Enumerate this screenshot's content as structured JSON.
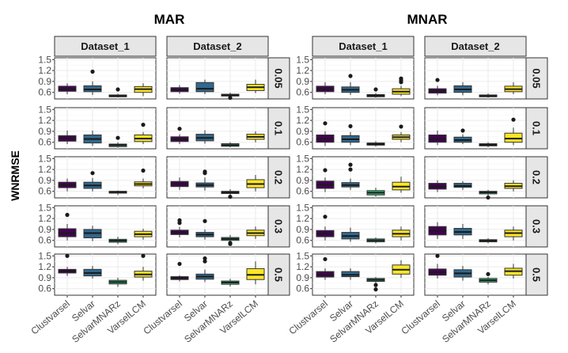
{
  "chart_data": {
    "type": "boxplot",
    "y_label": "WNRMSE",
    "y_ticks": [
      "0.6",
      "0.9",
      "1.2",
      "1.5"
    ],
    "y_tick_values": [
      0.6,
      0.9,
      1.2,
      1.5
    ],
    "ylim": [
      0.42,
      1.55
    ],
    "methods": [
      "Clustvarsel",
      "Selvar",
      "SelvarMNARz",
      "VarselLCM"
    ],
    "method_colors": [
      "#440154",
      "#31688e",
      "#35b779",
      "#fde725"
    ],
    "datasets": [
      "Dataset_1",
      "Dataset_2"
    ],
    "row_labels": [
      "0.05",
      "0.1",
      "0.2",
      "0.3",
      "0.5"
    ],
    "mechanisms": [
      {
        "title": "MAR",
        "panels": [
          [
            [
              {
                "q1": 0.63,
                "med": 0.69,
                "q3": 0.77,
                "lo": 0.55,
                "hi": 0.85,
                "out": []
              },
              {
                "q1": 0.62,
                "med": 0.68,
                "q3": 0.78,
                "lo": 0.53,
                "hi": 0.9,
                "out": [
                  1.17
                ]
              },
              {
                "q1": 0.48,
                "med": 0.5,
                "q3": 0.53,
                "lo": 0.46,
                "hi": 0.56,
                "out": [
                  0.68
                ]
              },
              {
                "q1": 0.6,
                "med": 0.69,
                "q3": 0.76,
                "lo": 0.5,
                "hi": 0.85,
                "out": []
              }
            ],
            [
              {
                "q1": 0.62,
                "med": 0.67,
                "q3": 0.73,
                "lo": 0.56,
                "hi": 0.8,
                "out": []
              },
              {
                "q1": 0.62,
                "med": 0.7,
                "q3": 0.87,
                "lo": 0.55,
                "hi": 0.95,
                "out": []
              },
              {
                "q1": 0.5,
                "med": 0.52,
                "q3": 0.55,
                "lo": 0.47,
                "hi": 0.59,
                "out": [
                  0.45
                ]
              },
              {
                "q1": 0.65,
                "med": 0.74,
                "q3": 0.82,
                "lo": 0.58,
                "hi": 0.95,
                "out": []
              }
            ]
          ],
          [
            [
              {
                "q1": 0.63,
                "med": 0.71,
                "q3": 0.78,
                "lo": 0.55,
                "hi": 0.92,
                "out": []
              },
              {
                "q1": 0.58,
                "med": 0.69,
                "q3": 0.8,
                "lo": 0.5,
                "hi": 0.92,
                "out": []
              },
              {
                "q1": 0.48,
                "med": 0.52,
                "q3": 0.55,
                "lo": 0.45,
                "hi": 0.6,
                "out": [
                  0.72
                ]
              },
              {
                "q1": 0.62,
                "med": 0.7,
                "q3": 0.8,
                "lo": 0.55,
                "hi": 0.88,
                "out": [
                  1.08
                ]
              }
            ],
            [
              {
                "q1": 0.62,
                "med": 0.68,
                "q3": 0.75,
                "lo": 0.55,
                "hi": 0.82,
                "out": [
                  0.97
                ]
              },
              {
                "q1": 0.64,
                "med": 0.72,
                "q3": 0.82,
                "lo": 0.56,
                "hi": 0.93,
                "out": []
              },
              {
                "q1": 0.49,
                "med": 0.52,
                "q3": 0.56,
                "lo": 0.46,
                "hi": 0.6,
                "out": []
              },
              {
                "q1": 0.68,
                "med": 0.75,
                "q3": 0.82,
                "lo": 0.6,
                "hi": 0.9,
                "out": []
              }
            ]
          ],
          [
            [
              {
                "q1": 0.7,
                "med": 0.77,
                "q3": 0.85,
                "lo": 0.6,
                "hi": 0.95,
                "out": []
              },
              {
                "q1": 0.68,
                "med": 0.76,
                "q3": 0.85,
                "lo": 0.6,
                "hi": 0.97,
                "out": [
                  1.1
                ]
              },
              {
                "q1": 0.55,
                "med": 0.58,
                "q3": 0.6,
                "lo": 0.5,
                "hi": 0.62,
                "out": []
              },
              {
                "q1": 0.75,
                "med": 0.8,
                "q3": 0.86,
                "lo": 0.68,
                "hi": 0.95,
                "out": [
                  1.17
                ]
              }
            ],
            [
              {
                "q1": 0.73,
                "med": 0.8,
                "q3": 0.87,
                "lo": 0.64,
                "hi": 0.98,
                "out": []
              },
              {
                "q1": 0.72,
                "med": 0.77,
                "q3": 0.83,
                "lo": 0.62,
                "hi": 0.98,
                "out": [
                  1.1,
                  1.14
                ]
              },
              {
                "q1": 0.54,
                "med": 0.57,
                "q3": 0.6,
                "lo": 0.5,
                "hi": 0.66,
                "out": [
                  0.45
                ]
              },
              {
                "q1": 0.7,
                "med": 0.8,
                "q3": 0.92,
                "lo": 0.6,
                "hi": 1.05,
                "out": []
              }
            ]
          ],
          [
            [
              {
                "q1": 0.7,
                "med": 0.8,
                "q3": 0.92,
                "lo": 0.6,
                "hi": 1.05,
                "out": [
                  1.3
                ]
              },
              {
                "q1": 0.67,
                "med": 0.8,
                "q3": 0.9,
                "lo": 0.58,
                "hi": 1.0,
                "out": []
              },
              {
                "q1": 0.55,
                "med": 0.59,
                "q3": 0.63,
                "lo": 0.5,
                "hi": 0.7,
                "out": []
              },
              {
                "q1": 0.7,
                "med": 0.77,
                "q3": 0.85,
                "lo": 0.62,
                "hi": 0.92,
                "out": []
              }
            ],
            [
              {
                "q1": 0.76,
                "med": 0.82,
                "q3": 0.88,
                "lo": 0.68,
                "hi": 0.97,
                "out": [
                  1.08,
                  1.15
                ]
              },
              {
                "q1": 0.7,
                "med": 0.76,
                "q3": 0.82,
                "lo": 0.62,
                "hi": 0.9,
                "out": [
                  1.13
                ]
              },
              {
                "q1": 0.6,
                "med": 0.64,
                "q3": 0.68,
                "lo": 0.56,
                "hi": 0.75,
                "out": [
                  0.53,
                  0.5
                ]
              },
              {
                "q1": 0.73,
                "med": 0.8,
                "q3": 0.88,
                "lo": 0.64,
                "hi": 0.98,
                "out": []
              }
            ]
          ],
          [
            [
              {
                "q1": 1.03,
                "med": 1.08,
                "q3": 1.13,
                "lo": 0.95,
                "hi": 1.2,
                "out": [
                  1.5
                ]
              },
              {
                "q1": 0.95,
                "med": 1.03,
                "q3": 1.13,
                "lo": 0.88,
                "hi": 1.22,
                "out": []
              },
              {
                "q1": 0.73,
                "med": 0.78,
                "q3": 0.83,
                "lo": 0.65,
                "hi": 0.9,
                "out": []
              },
              {
                "q1": 0.92,
                "med": 0.99,
                "q3": 1.08,
                "lo": 0.82,
                "hi": 1.2,
                "out": [
                  1.5
                ]
              }
            ],
            [
              {
                "q1": 0.85,
                "med": 0.89,
                "q3": 0.93,
                "lo": 0.8,
                "hi": 0.97,
                "out": [
                  1.28
                ]
              },
              {
                "q1": 0.86,
                "med": 0.93,
                "q3": 1.0,
                "lo": 0.78,
                "hi": 1.12,
                "out": [
                  1.35,
                  1.43
                ]
              },
              {
                "q1": 0.72,
                "med": 0.77,
                "q3": 0.81,
                "lo": 0.66,
                "hi": 0.87,
                "out": []
              },
              {
                "q1": 0.85,
                "med": 0.98,
                "q3": 1.15,
                "lo": 0.72,
                "hi": 1.35,
                "out": []
              }
            ]
          ]
        ]
      },
      {
        "title": "MNAR",
        "panels": [
          [
            [
              {
                "q1": 0.62,
                "med": 0.69,
                "q3": 0.77,
                "lo": 0.55,
                "hi": 0.88,
                "out": []
              },
              {
                "q1": 0.6,
                "med": 0.67,
                "q3": 0.75,
                "lo": 0.53,
                "hi": 0.88,
                "out": [
                  1.05
                ]
              },
              {
                "q1": 0.48,
                "med": 0.51,
                "q3": 0.54,
                "lo": 0.45,
                "hi": 0.58,
                "out": [
                  0.68
                ]
              },
              {
                "q1": 0.55,
                "med": 0.62,
                "q3": 0.7,
                "lo": 0.5,
                "hi": 0.78,
                "out": [
                  0.88,
                  0.93,
                  0.98
                ]
              }
            ],
            [
              {
                "q1": 0.58,
                "med": 0.64,
                "q3": 0.7,
                "lo": 0.52,
                "hi": 0.78,
                "out": [
                  0.94
                ]
              },
              {
                "q1": 0.6,
                "med": 0.68,
                "q3": 0.78,
                "lo": 0.52,
                "hi": 0.88,
                "out": []
              },
              {
                "q1": 0.48,
                "med": 0.5,
                "q3": 0.53,
                "lo": 0.45,
                "hi": 0.57,
                "out": []
              },
              {
                "q1": 0.62,
                "med": 0.69,
                "q3": 0.77,
                "lo": 0.55,
                "hi": 0.88,
                "out": []
              }
            ]
          ],
          [
            [
              {
                "q1": 0.6,
                "med": 0.69,
                "q3": 0.8,
                "lo": 0.5,
                "hi": 0.9,
                "out": [
                  1.12
                ]
              },
              {
                "q1": 0.6,
                "med": 0.68,
                "q3": 0.78,
                "lo": 0.52,
                "hi": 0.88,
                "out": [
                  1.04
                ]
              },
              {
                "q1": 0.52,
                "med": 0.55,
                "q3": 0.58,
                "lo": 0.48,
                "hi": 0.63,
                "out": []
              },
              {
                "q1": 0.68,
                "med": 0.74,
                "q3": 0.8,
                "lo": 0.6,
                "hi": 0.88,
                "out": [
                  1.03
                ]
              }
            ],
            [
              {
                "q1": 0.6,
                "med": 0.68,
                "q3": 0.8,
                "lo": 0.52,
                "hi": 0.92,
                "out": []
              },
              {
                "q1": 0.6,
                "med": 0.66,
                "q3": 0.74,
                "lo": 0.55,
                "hi": 0.82,
                "out": [
                  0.92
                ]
              },
              {
                "q1": 0.5,
                "med": 0.53,
                "q3": 0.56,
                "lo": 0.46,
                "hi": 0.6,
                "out": []
              },
              {
                "q1": 0.6,
                "med": 0.7,
                "q3": 0.85,
                "lo": 0.52,
                "hi": 1.0,
                "out": [
                  1.22
                ]
              }
            ]
          ],
          [
            [
              {
                "q1": 0.68,
                "med": 0.78,
                "q3": 0.88,
                "lo": 0.58,
                "hi": 0.98,
                "out": [
                  1.18
                ]
              },
              {
                "q1": 0.72,
                "med": 0.77,
                "q3": 0.84,
                "lo": 0.64,
                "hi": 0.95,
                "out": [
                  1.2,
                  1.33
                ]
              },
              {
                "q1": 0.5,
                "med": 0.56,
                "q3": 0.62,
                "lo": 0.45,
                "hi": 0.7,
                "out": []
              },
              {
                "q1": 0.64,
                "med": 0.73,
                "q3": 0.85,
                "lo": 0.56,
                "hi": 1.0,
                "out": []
              }
            ],
            [
              {
                "q1": 0.66,
                "med": 0.73,
                "q3": 0.82,
                "lo": 0.58,
                "hi": 0.9,
                "out": []
              },
              {
                "q1": 0.71,
                "med": 0.75,
                "q3": 0.82,
                "lo": 0.64,
                "hi": 0.88,
                "out": []
              },
              {
                "q1": 0.53,
                "med": 0.57,
                "q3": 0.6,
                "lo": 0.48,
                "hi": 0.64,
                "out": [
                  0.43
                ]
              },
              {
                "q1": 0.68,
                "med": 0.74,
                "q3": 0.82,
                "lo": 0.6,
                "hi": 0.9,
                "out": []
              }
            ]
          ],
          [
            [
              {
                "q1": 0.7,
                "med": 0.78,
                "q3": 0.87,
                "lo": 0.6,
                "hi": 0.98,
                "out": [
                  1.25
                ]
              },
              {
                "q1": 0.64,
                "med": 0.72,
                "q3": 0.82,
                "lo": 0.56,
                "hi": 0.95,
                "out": []
              },
              {
                "q1": 0.56,
                "med": 0.6,
                "q3": 0.64,
                "lo": 0.52,
                "hi": 0.68,
                "out": []
              },
              {
                "q1": 0.7,
                "med": 0.78,
                "q3": 0.88,
                "lo": 0.6,
                "hi": 0.98,
                "out": []
              }
            ],
            [
              {
                "q1": 0.75,
                "med": 0.86,
                "q3": 0.98,
                "lo": 0.64,
                "hi": 1.1,
                "out": []
              },
              {
                "q1": 0.75,
                "med": 0.83,
                "q3": 0.93,
                "lo": 0.64,
                "hi": 1.05,
                "out": []
              },
              {
                "q1": 0.56,
                "med": 0.59,
                "q3": 0.62,
                "lo": 0.52,
                "hi": 0.66,
                "out": []
              },
              {
                "q1": 0.7,
                "med": 0.8,
                "q3": 0.88,
                "lo": 0.6,
                "hi": 0.98,
                "out": []
              }
            ]
          ],
          [
            [
              {
                "q1": 0.92,
                "med": 0.98,
                "q3": 1.07,
                "lo": 0.84,
                "hi": 1.16,
                "out": [
                  1.41
                ]
              },
              {
                "q1": 0.93,
                "med": 0.98,
                "q3": 1.07,
                "lo": 0.84,
                "hi": 1.16,
                "out": []
              },
              {
                "q1": 0.8,
                "med": 0.84,
                "q3": 0.88,
                "lo": 0.74,
                "hi": 0.92,
                "out": [
                  0.7,
                  0.58
                ]
              },
              {
                "q1": 1.0,
                "med": 1.12,
                "q3": 1.25,
                "lo": 0.9,
                "hi": 1.38,
                "out": []
              }
            ],
            [
              {
                "q1": 0.97,
                "med": 1.05,
                "q3": 1.14,
                "lo": 0.88,
                "hi": 1.28,
                "out": [
                  1.5
                ]
              },
              {
                "q1": 0.92,
                "med": 1.02,
                "q3": 1.12,
                "lo": 0.82,
                "hi": 1.22,
                "out": []
              },
              {
                "q1": 0.78,
                "med": 0.83,
                "q3": 0.88,
                "lo": 0.72,
                "hi": 0.92,
                "out": [
                  1.0
                ]
              },
              {
                "q1": 0.97,
                "med": 1.08,
                "q3": 1.16,
                "lo": 0.88,
                "hi": 1.28,
                "out": []
              }
            ]
          ]
        ]
      }
    ]
  }
}
